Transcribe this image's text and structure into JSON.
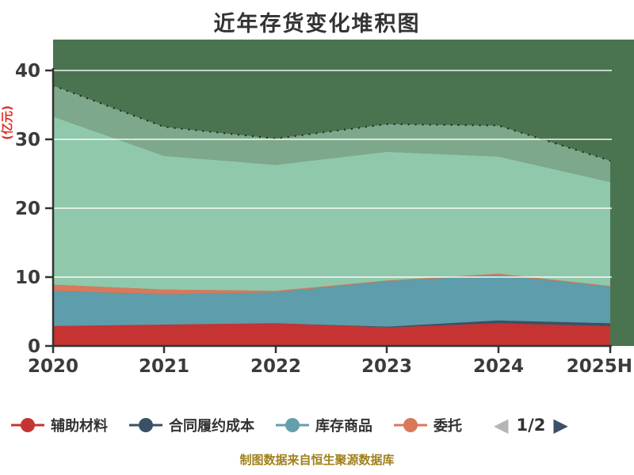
{
  "title": "近年存货变化堆积图",
  "footer": "制图数据来自恒生聚源数据库",
  "y_axis": {
    "name": "(亿元)",
    "name_color": "#e03020",
    "ticks": [
      0,
      10,
      20,
      30,
      40
    ]
  },
  "legend": {
    "page_label": "1/2",
    "prev_arrow": "◀",
    "next_arrow": "▶",
    "items": [
      {
        "label": "辅助材料",
        "color": "#c53433",
        "clipped": false
      },
      {
        "label": "合同履约成本",
        "color": "#3a5066",
        "clipped": false
      },
      {
        "label": "库存商品",
        "color": "#649fae",
        "clipped": false
      },
      {
        "label": "委托",
        "color": "#d8795b",
        "clipped": true
      }
    ]
  },
  "chart_data": {
    "type": "area",
    "stacked": true,
    "title": "近年存货变化堆积图",
    "xlabel": "",
    "ylabel": "(亿元)",
    "ylim": [
      0,
      40
    ],
    "grid": true,
    "legend_position": "bottom",
    "categories": [
      "2020",
      "2021",
      "2022",
      "2023",
      "2024",
      "2025H"
    ],
    "series": [
      {
        "name": "辅助材料",
        "color": "#c53433",
        "legend_page": 1,
        "values": [
          2.9,
          3.1,
          3.3,
          2.7,
          3.3,
          2.9
        ]
      },
      {
        "name": "合同履约成本",
        "color": "#3a5066",
        "legend_page": 1,
        "values": [
          0.0,
          0.0,
          0.0,
          0.1,
          0.4,
          0.4
        ]
      },
      {
        "name": "库存商品",
        "color": "#5e9dac",
        "legend_page": 1,
        "values": [
          5.1,
          4.4,
          4.5,
          6.6,
          6.6,
          5.3
        ]
      },
      {
        "name": "委托",
        "color": "#d8795b",
        "legend_page": 1,
        "values": [
          0.9,
          0.7,
          0.2,
          0.1,
          0.2,
          0.1
        ]
      },
      {
        "name": "",
        "color": "#90c8ac",
        "legend_page": 2,
        "values": [
          24.4,
          19.4,
          18.3,
          18.7,
          17.0,
          15.1
        ]
      },
      {
        "name": "",
        "color": "#7ea88b",
        "legend_page": 2,
        "values": [
          4.5,
          4.2,
          3.8,
          4.0,
          4.5,
          3.1
        ],
        "top_line_dotted": true
      },
      {
        "name": "",
        "color": "#4a7450",
        "legend_page": 2,
        "values": [
          null,
          null,
          null,
          null,
          null,
          null
        ],
        "clipped_at_top": true
      }
    ],
    "colors": {
      "axis": "#333333",
      "tick_label": "#3b3b3b",
      "gridline": "rgba(255,255,255,0.7)",
      "plot_backdrop_top_series": "#4a7450"
    }
  }
}
